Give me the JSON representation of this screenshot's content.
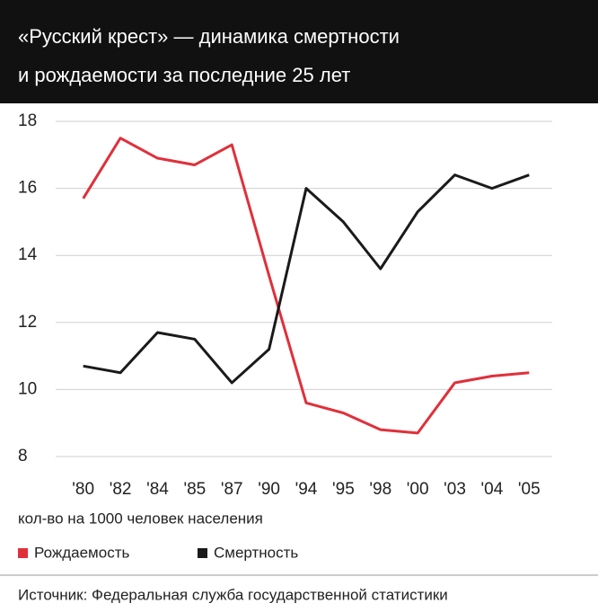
{
  "chart_data": {
    "type": "line",
    "title": [
      "«Русский крест» — динамика смертности",
      "и рождаемости за последние 25 лет"
    ],
    "categories": [
      "'80",
      "'82",
      "'84",
      "'85",
      "'87",
      "'90",
      "'94",
      "'95",
      "'98",
      "'00",
      "'03",
      "'04",
      "'05"
    ],
    "series": [
      {
        "name": "Рождаемость",
        "color": "#e0303a",
        "values": [
          15.7,
          17.5,
          16.9,
          16.7,
          17.3,
          13.4,
          9.6,
          9.3,
          8.8,
          8.7,
          10.2,
          10.4,
          10.5
        ]
      },
      {
        "name": "Смертность",
        "color": "#1a1a1a",
        "values": [
          10.7,
          10.5,
          11.7,
          11.5,
          10.2,
          11.2,
          16.0,
          15.0,
          13.6,
          15.3,
          16.4,
          16.0,
          16.4
        ]
      }
    ],
    "ylim": [
      8,
      18
    ],
    "yticks": [
      8,
      10,
      12,
      14,
      16,
      18
    ],
    "grid": true,
    "axis_label": "кол-во на 1000 человек населения",
    "source": "Источник: Федеральная служба государственной статистики"
  }
}
